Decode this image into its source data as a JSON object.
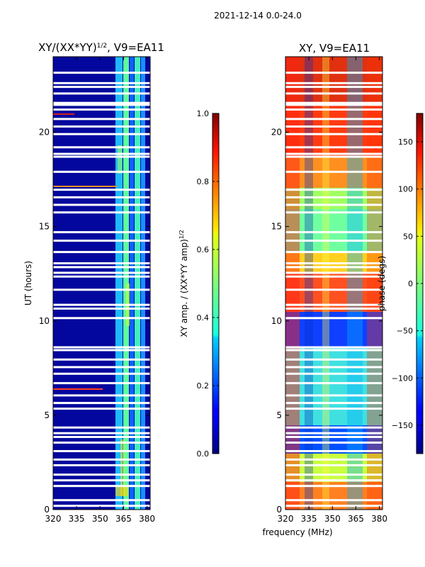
{
  "figure": {
    "suptitle": "2021-12-14 0.0-24.0",
    "xlabel": "frequency (MHz)"
  },
  "chart_data": [
    {
      "type": "heatmap",
      "title": "XY/(XX*YY)",
      "title_exponent": "1/2",
      "title_suffix": ", V9=EA11",
      "xlabel": "",
      "ylabel": "UT (hours)",
      "xlim": [
        320,
        382
      ],
      "ylim": [
        0,
        24
      ],
      "xticks": [
        320,
        335,
        350,
        365,
        380
      ],
      "yticks": [
        0,
        5,
        10,
        15,
        20
      ],
      "colorbar": {
        "label": "XY amp. / (XX*YY amp)",
        "label_exponent": "1/2",
        "range": [
          0.0,
          1.0
        ],
        "ticks": [
          "0.0",
          "0.2",
          "0.4",
          "0.6",
          "0.8",
          "1.0"
        ],
        "colormap": "jet"
      },
      "gap_hours": [
        0.2,
        0.5,
        1.25,
        1.55,
        1.85,
        2.35,
        2.65,
        3.1,
        3.55,
        3.85,
        4.05,
        4.35,
        5.35,
        5.65,
        6.05,
        6.7,
        7.2,
        7.55,
        7.95,
        8.45,
        8.6,
        10.15,
        10.65,
        10.85,
        11.65,
        12.35,
        12.55,
        12.85,
        13.05,
        13.65,
        14.25,
        14.7,
        15.75,
        16.15,
        16.55,
        16.95,
        17.9,
        18.7,
        18.85,
        19.2,
        19.9,
        20.3,
        20.7,
        21.2,
        21.45,
        21.55,
        22.05,
        22.4,
        22.6,
        23.15
      ],
      "notes": "Low normalized XY amplitude (~0.0-0.1) across most of the band; elevated values (~0.4-0.7) in the 363-381 MHz region."
    },
    {
      "type": "heatmap",
      "title": "XY, V9=EA11",
      "xlabel": "",
      "ylabel": "",
      "xlim": [
        320,
        382
      ],
      "ylim": [
        0,
        24
      ],
      "xticks": [
        320,
        335,
        350,
        365,
        380
      ],
      "yticks": [
        0,
        5,
        10,
        15,
        20
      ],
      "colorbar": {
        "label": "phase (degs)",
        "range": [
          -180,
          180
        ],
        "ticks": [
          "−150",
          "−100",
          "−50",
          "0",
          "50",
          "100",
          "150"
        ],
        "tick_values": [
          -150,
          -100,
          -50,
          0,
          50,
          100,
          150
        ],
        "colormap": "jet"
      },
      "gap_hours": [
        0.2,
        0.5,
        1.25,
        1.55,
        1.85,
        2.35,
        2.65,
        3.1,
        3.55,
        3.85,
        4.05,
        4.35,
        5.35,
        5.65,
        6.05,
        6.7,
        7.2,
        7.55,
        7.95,
        8.45,
        8.6,
        10.15,
        10.65,
        10.85,
        11.65,
        12.35,
        12.55,
        12.85,
        13.05,
        13.65,
        14.25,
        14.7,
        15.75,
        16.15,
        16.55,
        16.95,
        17.9,
        18.7,
        18.85,
        19.2,
        19.9,
        20.3,
        20.7,
        21.2,
        21.45,
        21.55,
        22.05,
        22.4,
        22.6,
        23.15
      ],
      "notes": "XY phase spans the full -180 to 180 degree range with banded structure; predominantly red/yellow (high phase) near 19-22 h, mixed elsewhere."
    }
  ]
}
